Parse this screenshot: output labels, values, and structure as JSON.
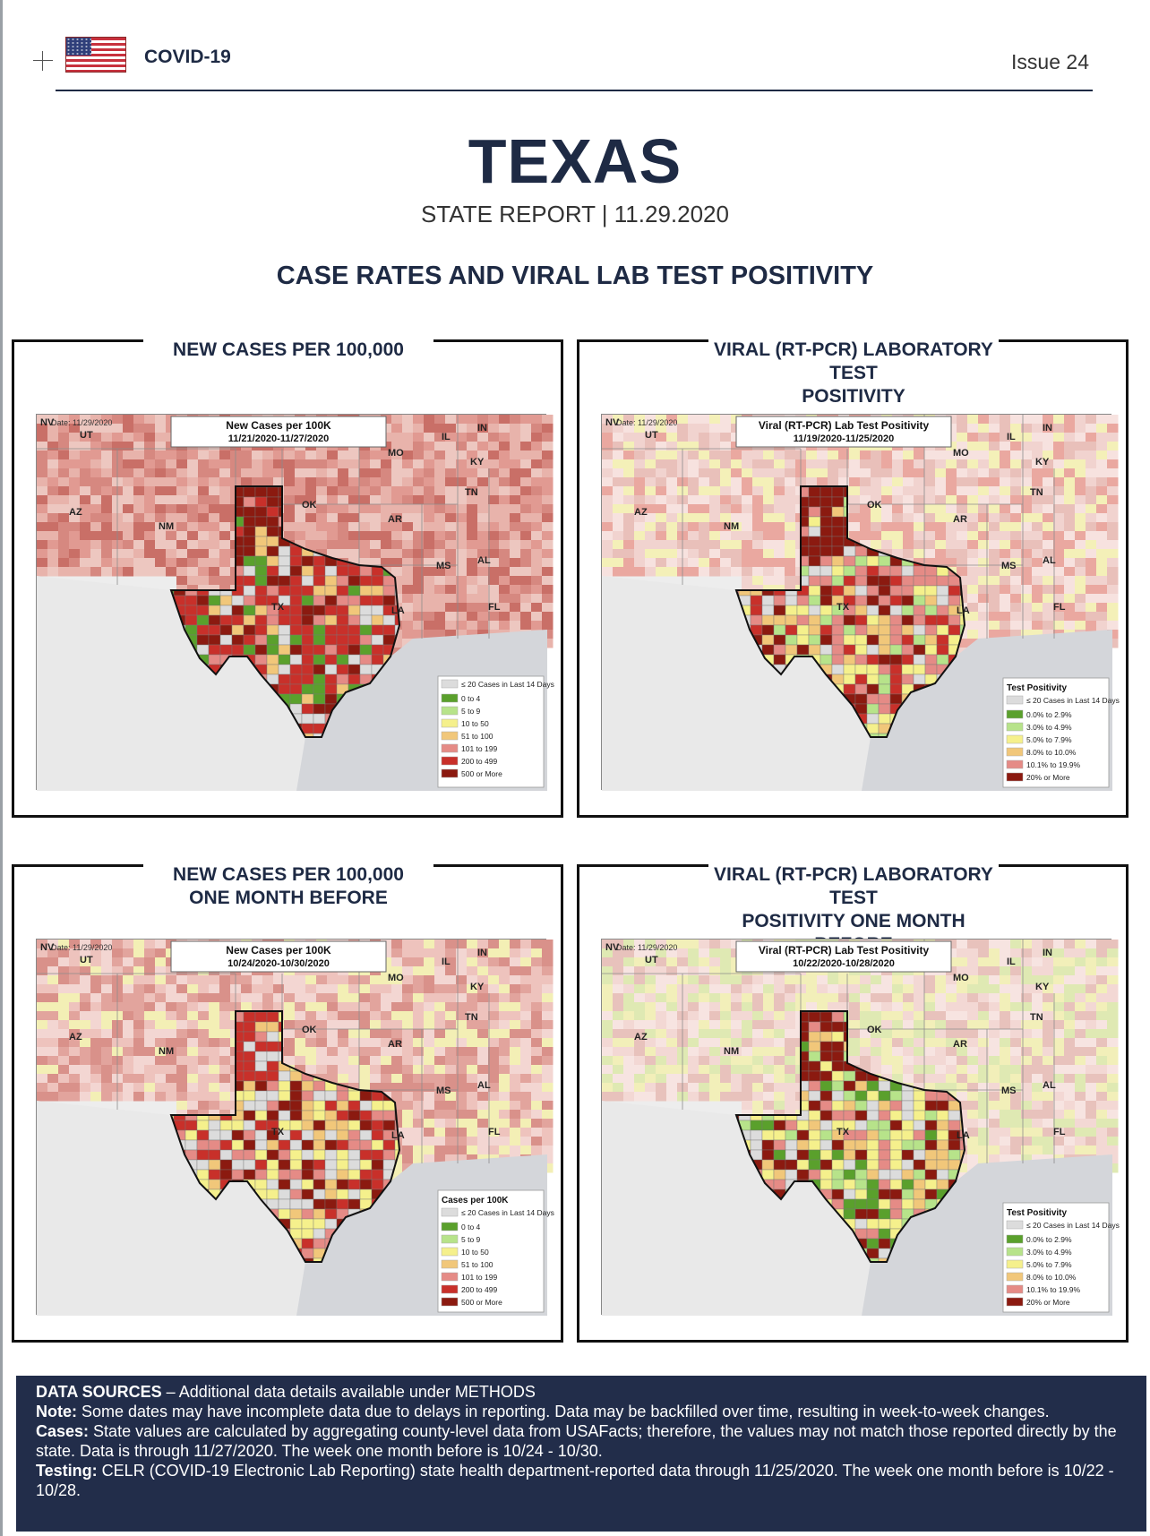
{
  "header": {
    "brand": "COVID-19",
    "issue": "Issue 24",
    "state": "TEXAS",
    "report_line": "STATE REPORT | 11.29.2020",
    "section_title": "CASE RATES AND VIRAL LAB TEST POSITIVITY"
  },
  "panels": [
    {
      "title_line1": "NEW CASES PER 100,000",
      "title_line2": "",
      "map_title_line1": "New Cases per 100K",
      "map_title_line2": "11/21/2020-11/27/2020",
      "date": "Date: 11/29/2020",
      "legend_title": "",
      "legend": [
        "≤ 20 Cases in Last 14 Days",
        "0 to 4",
        "5 to 9",
        "10 to 50",
        "51 to 100",
        "101 to 199",
        "200 to 499",
        "500 or More"
      ]
    },
    {
      "title_line1": "VIRAL (RT-PCR) LABORATORY TEST",
      "title_line2": "POSITIVITY",
      "map_title_line1": "Viral (RT-PCR) Lab Test Positivity",
      "map_title_line2": "11/19/2020-11/25/2020",
      "date": "Date: 11/29/2020",
      "legend_title": "Test Positivity",
      "legend": [
        "≤ 20 Cases in Last 14 Days",
        "0.0% to 2.9%",
        "3.0% to 4.9%",
        "5.0% to 7.9%",
        "8.0% to 10.0%",
        "10.1% to 19.9%",
        "20% or More"
      ]
    },
    {
      "title_line1": "NEW CASES PER 100,000",
      "title_line2": "ONE MONTH BEFORE",
      "map_title_line1": "New Cases per 100K",
      "map_title_line2": "10/24/2020-10/30/2020",
      "date": "Date: 11/29/2020",
      "legend_title": "Cases per 100K",
      "legend": [
        "≤ 20 Cases in Last 14 Days",
        "0 to 4",
        "5 to 9",
        "10 to 50",
        "51 to 100",
        "101 to 199",
        "200 to 499",
        "500 or More"
      ]
    },
    {
      "title_line1": "VIRAL (RT-PCR) LABORATORY TEST",
      "title_line2": "POSITIVITY ONE MONTH BEFORE",
      "map_title_line1": "Viral (RT-PCR) Lab Test Positivity",
      "map_title_line2": "10/22/2020-10/28/2020",
      "date": "Date: 11/29/2020",
      "legend_title": "Test Positivity",
      "legend": [
        "≤ 20 Cases in Last 14 Days",
        "0.0% to 2.9%",
        "3.0% to 4.9%",
        "5.0% to 7.9%",
        "8.0% to 10.0%",
        "10.1% to 19.9%",
        "20% or More"
      ]
    }
  ],
  "map_labels": {
    "nv": "NV",
    "ut": "UT",
    "az": "AZ",
    "nm": "NM",
    "ok": "OK",
    "ar": "AR",
    "mo": "MO",
    "il": "IL",
    "in": "IN",
    "ky": "KY",
    "tn": "TN",
    "ms": "MS",
    "al": "AL",
    "la": "LA",
    "fl": "FL",
    "tx": "TX"
  },
  "colors": {
    "navy": "#1e2a44",
    "lte20": "#dcdcdc",
    "c0": "#5aa02c",
    "c1": "#b7e38a",
    "c2": "#f5f08c",
    "c3": "#f1c77a",
    "c4": "#e58b86",
    "c5": "#c8302a",
    "c6": "#8b1a10",
    "ocean": "#d4d6da",
    "land": "#ededed"
  },
  "footer": {
    "sources_label": "DATA SOURCES",
    "sources_text": " – Additional data details available under METHODS",
    "note_label": "Note:",
    "note_text": " Some dates may have incomplete data due to delays in reporting. Data may be backfilled over time, resulting in week-to-week changes.",
    "cases_label": "Cases:",
    "cases_text": "  State values are calculated by aggregating county-level data from USAFacts; therefore, the values may not match those reported directly by the state. Data is through 11/27/2020. The week one month before is 10/24 - 10/30.",
    "testing_label": "Testing:",
    "testing_text": " CELR (COVID-19 Electronic Lab Reporting) state health department-reported data through 11/25/2020. The week one month before is 10/22 - 10/28."
  }
}
